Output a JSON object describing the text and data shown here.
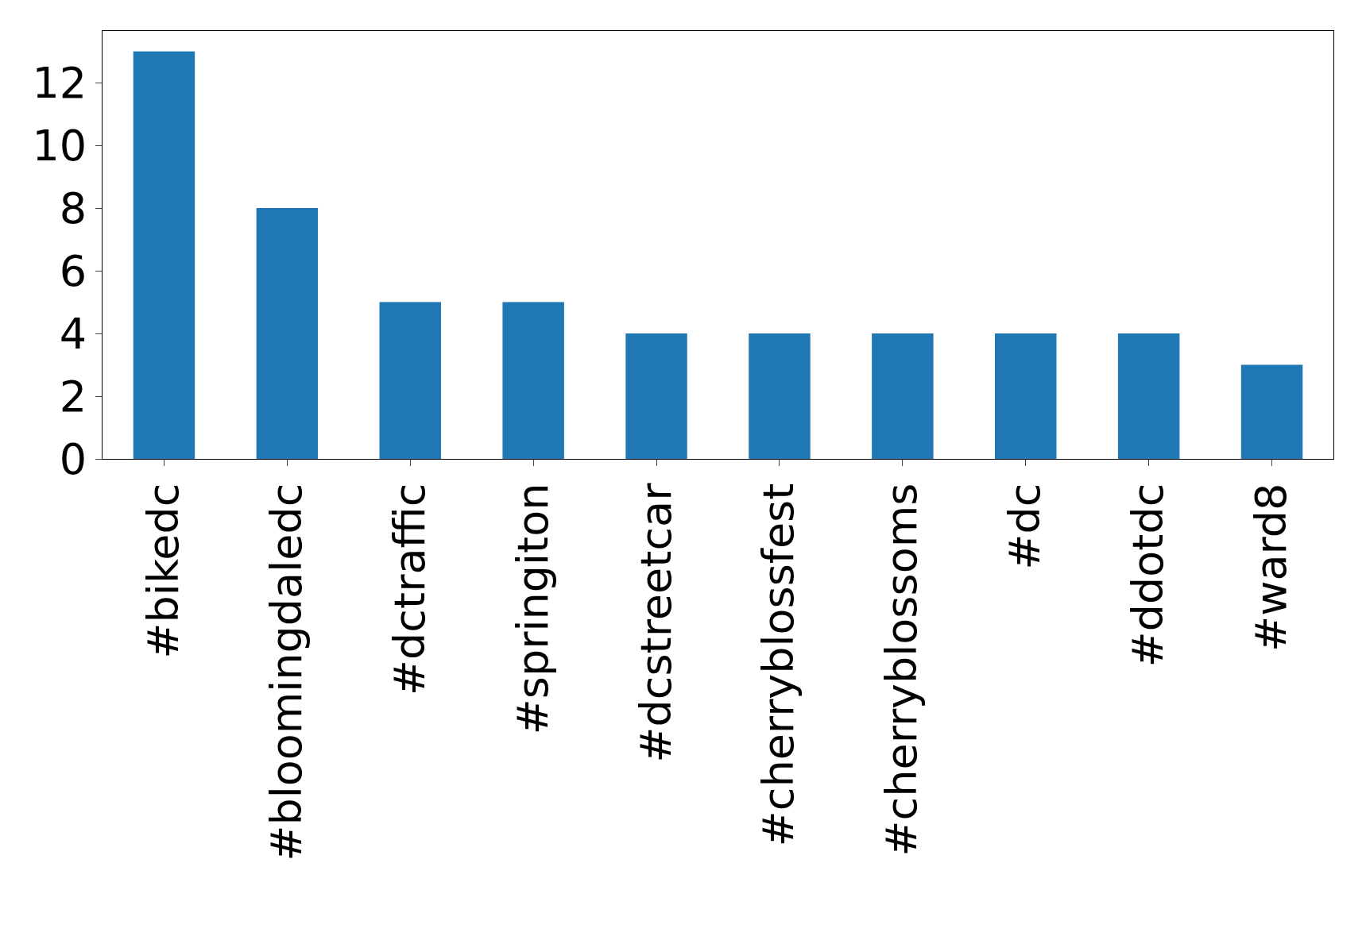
{
  "chart_data": {
    "type": "bar",
    "categories": [
      "#bikedc",
      "#bloomingdaledc",
      "#dctraffic",
      "#springiton",
      "#dcstreetcar",
      "#cherryblossfest",
      "#cherryblossoms",
      "#dc",
      "#ddotdc",
      "#ward8"
    ],
    "values": [
      13,
      8,
      5,
      5,
      4,
      4,
      4,
      4,
      4,
      3
    ],
    "color": "#1f77b4",
    "ylim": [
      0,
      13.65
    ],
    "yticks": [
      0,
      2,
      4,
      6,
      8,
      10,
      12
    ],
    "grid": false
  }
}
